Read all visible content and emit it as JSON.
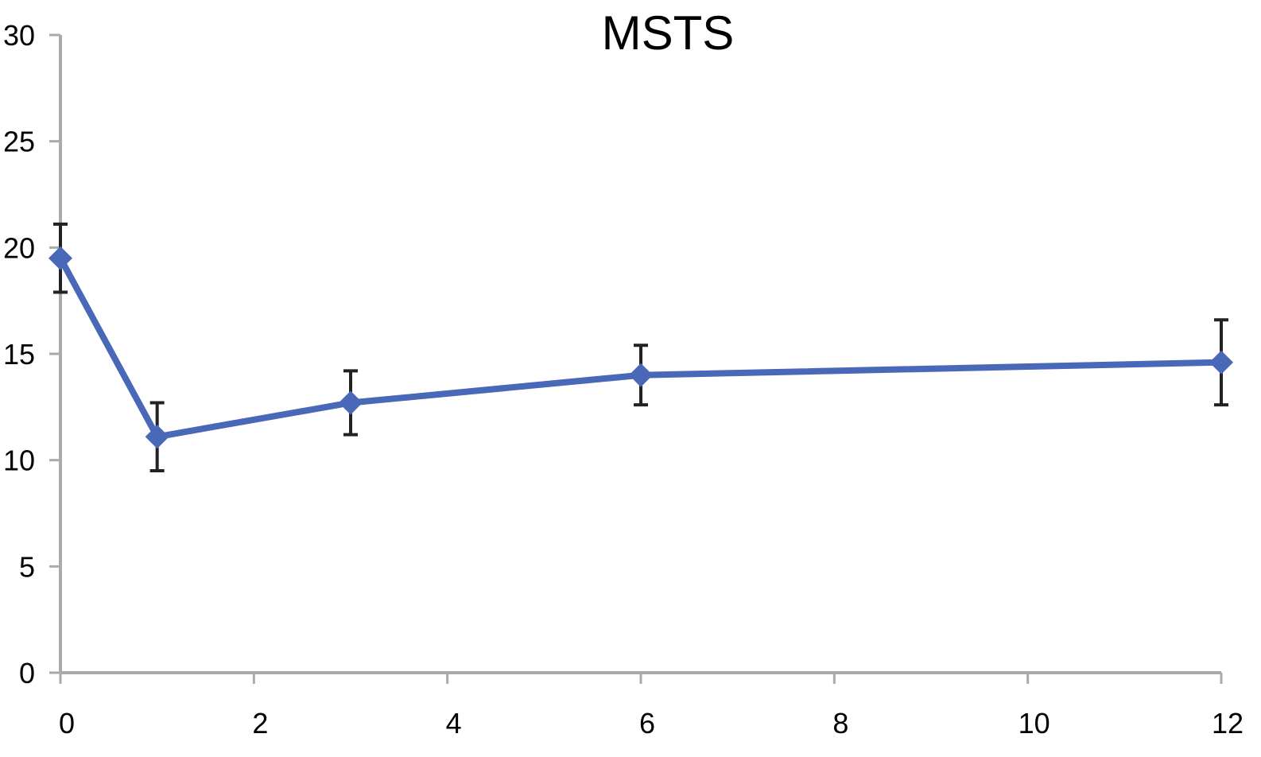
{
  "chart_data": {
    "type": "line",
    "title": "MSTS",
    "xlabel": "",
    "ylabel": "",
    "xlim": [
      0,
      12
    ],
    "ylim": [
      0,
      30
    ],
    "x_ticks": [
      "0",
      "2",
      "4",
      "6",
      "8",
      "10",
      "12"
    ],
    "y_ticks": [
      "0",
      "5",
      "10",
      "15",
      "20",
      "25",
      "30"
    ],
    "grid": false,
    "legend": "none",
    "colors": {
      "line": "#4a68b8",
      "marker": "#4a68b8",
      "error_bar": "#222222",
      "axis": "#aaaaaa"
    },
    "series": [
      {
        "x": [
          0,
          1,
          3,
          6,
          12
        ],
        "y": [
          19.5,
          11.1,
          12.7,
          14,
          14.6
        ],
        "error": [
          1.6,
          1.6,
          1.5,
          1.4,
          2
        ]
      }
    ]
  }
}
